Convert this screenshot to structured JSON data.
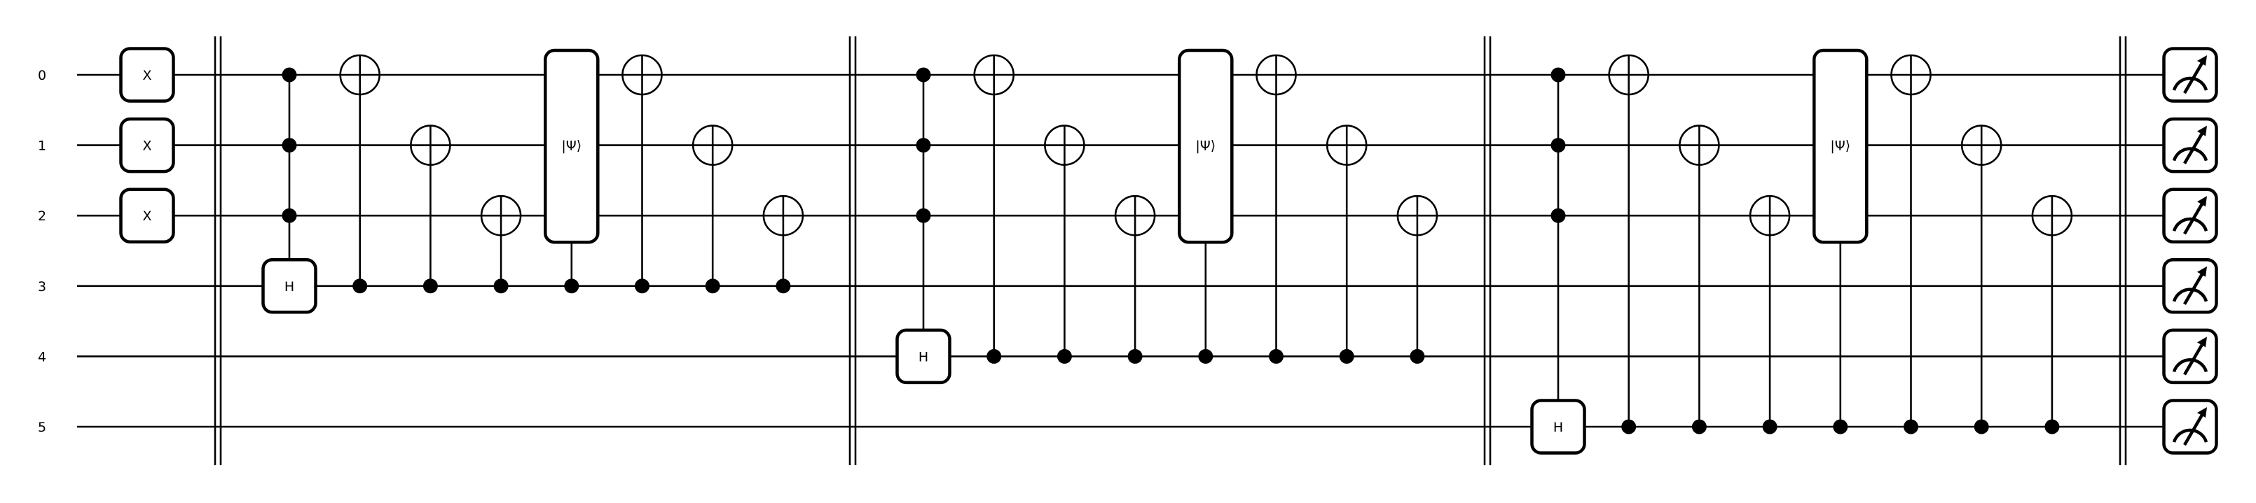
{
  "circuit": {
    "wires": [
      "0",
      "1",
      "2",
      "3",
      "4",
      "5"
    ],
    "x_gate_label": "X",
    "h_gate_label": "H",
    "psi_gate_label": "|Ψ⟩",
    "initial_x_wires": [
      0,
      1,
      2
    ],
    "blocks": [
      {
        "ancilla": 3,
        "controls": [
          0,
          1,
          2
        ],
        "targets_before": [
          0,
          1,
          2
        ],
        "targets_after": [
          0,
          1,
          2
        ]
      },
      {
        "ancilla": 4,
        "controls": [
          0,
          1,
          2
        ],
        "targets_before": [
          0,
          1,
          2
        ],
        "targets_after": [
          0,
          1,
          2
        ]
      },
      {
        "ancilla": 5,
        "controls": [
          0,
          1,
          2
        ],
        "targets_before": [
          0,
          1,
          2
        ],
        "targets_after": [
          0,
          1,
          2
        ]
      }
    ],
    "measured_wires": [
      0,
      1,
      2,
      3,
      4,
      5
    ]
  }
}
